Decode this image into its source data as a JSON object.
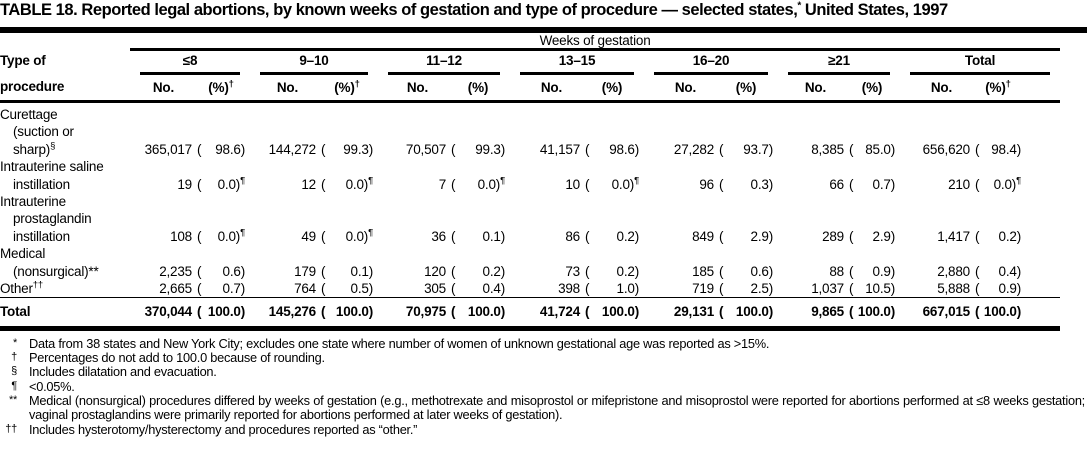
{
  "title": {
    "prefix": "TABLE 18. Reported legal abortions, by known weeks of gestation and type of procedure — selected states,",
    "sup": "*",
    "suffix": " United States, 1997"
  },
  "table": {
    "corner": {
      "line1": "Type of",
      "line2": "procedure"
    },
    "span_header": "Weeks of gestation",
    "groups": [
      {
        "label": "≤8",
        "no_label": "No.",
        "pct_label": "(%)",
        "pct_sup": "†"
      },
      {
        "label": "9–10",
        "no_label": "No.",
        "pct_label": "(%)",
        "pct_sup": "†"
      },
      {
        "label": "11–12",
        "no_label": "No.",
        "pct_label": "(%)",
        "pct_sup": ""
      },
      {
        "label": "13–15",
        "no_label": "No.",
        "pct_label": "(%)",
        "pct_sup": ""
      },
      {
        "label": "16–20",
        "no_label": "No.",
        "pct_label": "(%)",
        "pct_sup": ""
      },
      {
        "label": "≥21",
        "no_label": "No.",
        "pct_label": "(%)",
        "pct_sup": ""
      },
      {
        "label": "Total",
        "no_label": "No.",
        "pct_label": "(%)",
        "pct_sup": "†"
      }
    ],
    "rows": [
      {
        "label_lines": [
          "Curettage",
          "(suction or",
          "sharp)"
        ],
        "label_sup": "§",
        "cells": [
          {
            "no": "365,017",
            "pct": "98.6",
            "sup": ""
          },
          {
            "no": "144,272",
            "pct": "99.3",
            "sup": ""
          },
          {
            "no": "70,507",
            "pct": "99.3",
            "sup": ""
          },
          {
            "no": "41,157",
            "pct": "98.6",
            "sup": ""
          },
          {
            "no": "27,282",
            "pct": "93.7",
            "sup": ""
          },
          {
            "no": "8,385",
            "pct": "85.0",
            "sup": ""
          },
          {
            "no": "656,620",
            "pct": "98.4",
            "sup": ""
          }
        ]
      },
      {
        "label_lines": [
          "Intrauterine saline",
          "instillation"
        ],
        "label_sup": "",
        "cells": [
          {
            "no": "19",
            "pct": "0.0",
            "sup": "¶"
          },
          {
            "no": "12",
            "pct": "0.0",
            "sup": "¶"
          },
          {
            "no": "7",
            "pct": "0.0",
            "sup": "¶"
          },
          {
            "no": "10",
            "pct": "0.0",
            "sup": "¶"
          },
          {
            "no": "96",
            "pct": "0.3",
            "sup": ""
          },
          {
            "no": "66",
            "pct": "0.7",
            "sup": ""
          },
          {
            "no": "210",
            "pct": "0.0",
            "sup": "¶"
          }
        ]
      },
      {
        "label_lines": [
          "Intrauterine",
          "prostaglandin",
          "instillation"
        ],
        "label_sup": "",
        "cells": [
          {
            "no": "108",
            "pct": "0.0",
            "sup": "¶"
          },
          {
            "no": "49",
            "pct": "0.0",
            "sup": "¶"
          },
          {
            "no": "36",
            "pct": "0.1",
            "sup": ""
          },
          {
            "no": "86",
            "pct": "0.2",
            "sup": ""
          },
          {
            "no": "849",
            "pct": "2.9",
            "sup": ""
          },
          {
            "no": "289",
            "pct": "2.9",
            "sup": ""
          },
          {
            "no": "1,417",
            "pct": "0.2",
            "sup": ""
          }
        ]
      },
      {
        "label_lines": [
          "Medical",
          "(nonsurgical)**"
        ],
        "label_sup": "",
        "cells": [
          {
            "no": "2,235",
            "pct": "0.6",
            "sup": ""
          },
          {
            "no": "179",
            "pct": "0.1",
            "sup": ""
          },
          {
            "no": "120",
            "pct": "0.2",
            "sup": ""
          },
          {
            "no": "73",
            "pct": "0.2",
            "sup": ""
          },
          {
            "no": "185",
            "pct": "0.6",
            "sup": ""
          },
          {
            "no": "88",
            "pct": "0.9",
            "sup": ""
          },
          {
            "no": "2,880",
            "pct": "0.4",
            "sup": ""
          }
        ]
      },
      {
        "label_lines": [
          "Other"
        ],
        "label_sup": "††",
        "cells": [
          {
            "no": "2,665",
            "pct": "0.7",
            "sup": ""
          },
          {
            "no": "764",
            "pct": "0.5",
            "sup": ""
          },
          {
            "no": "305",
            "pct": "0.4",
            "sup": ""
          },
          {
            "no": "398",
            "pct": "1.0",
            "sup": ""
          },
          {
            "no": "719",
            "pct": "2.5",
            "sup": ""
          },
          {
            "no": "1,037",
            "pct": "10.5",
            "sup": ""
          },
          {
            "no": "5,888",
            "pct": "0.9",
            "sup": ""
          }
        ]
      }
    ],
    "total_row": {
      "label": "Total",
      "cells": [
        {
          "no": "370,044",
          "pct": "100.0",
          "sup": ""
        },
        {
          "no": "145,276",
          "pct": "100.0",
          "sup": ""
        },
        {
          "no": "70,975",
          "pct": "100.0",
          "sup": ""
        },
        {
          "no": "41,724",
          "pct": "100.0",
          "sup": ""
        },
        {
          "no": "29,131",
          "pct": "100.0",
          "sup": ""
        },
        {
          "no": "9,865",
          "pct": "100.0",
          "sup": ""
        },
        {
          "no": "667,015",
          "pct": "100.0",
          "sup": ""
        }
      ]
    }
  },
  "footnotes": [
    {
      "mark": "*",
      "text": "Data from 38 states and New York City; excludes one state where number of women of unknown gestational age was reported as >15%."
    },
    {
      "mark": "†",
      "text": "Percentages do not add to 100.0 because of rounding."
    },
    {
      "mark": "§",
      "text": "Includes dilatation and evacuation."
    },
    {
      "mark": "¶",
      "text": "<0.05%."
    },
    {
      "mark": "**",
      "text": "Medical (nonsurgical) procedures differed by weeks of gestation (e.g., methotrexate and misoprostol or mifepristone and misoprostol were reported for abortions performed at ≤8 weeks gestation; vaginal prostaglandins were primarily reported for abortions performed at later weeks of gestation)."
    },
    {
      "mark": "††",
      "text": "Includes hysterotomy/hysterectomy and procedures reported as “other.”"
    }
  ]
}
